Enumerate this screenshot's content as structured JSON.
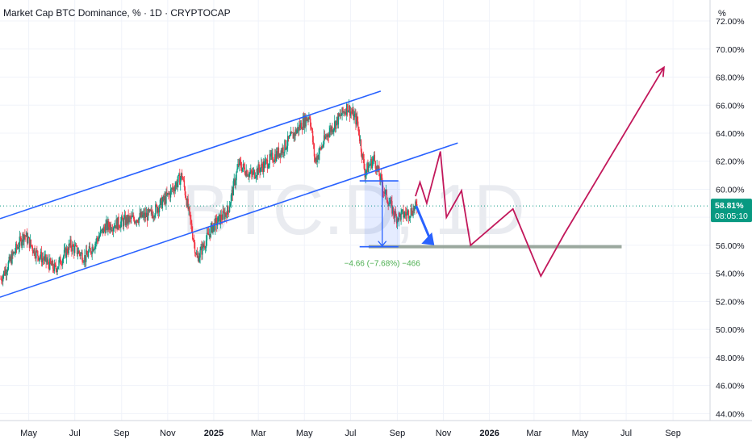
{
  "header": {
    "title": "Market Cap BTC Dominance, % · 1D · CRYPTOCAP"
  },
  "watermark": "BTC.D, 1D",
  "price_axis": {
    "unit_label": "%",
    "ticks": [
      "72.00%",
      "70.00%",
      "68.00%",
      "66.00%",
      "64.00%",
      "62.00%",
      "60.00%",
      "58.00%",
      "56.00%",
      "54.00%",
      "52.00%",
      "50.00%",
      "48.00%",
      "46.00%",
      "44.00%"
    ]
  },
  "time_axis": {
    "ticks": [
      "May",
      "Jul",
      "Sep",
      "Nov",
      "2025",
      "Mar",
      "May",
      "Jul",
      "Sep",
      "Nov",
      "2026",
      "Mar",
      "May",
      "Jul",
      "Sep"
    ],
    "bold": [
      "2025",
      "2026"
    ]
  },
  "current_price": {
    "value": "58.81%",
    "countdown": "08:05:10",
    "level": 58.81
  },
  "measure_label": "−4.66 (−7.68%) −466",
  "colors": {
    "up": "#089981",
    "down": "#f23645",
    "channel": "#2962ff",
    "projection": "#c2185b",
    "support": "#8a9a8e",
    "badge": "#089981",
    "measure_text": "#4caf50"
  },
  "chart_data": {
    "type": "candlestick",
    "title": "Market Cap BTC Dominance, % · 1D · CRYPTOCAP",
    "timeframe": "1D",
    "ylim": [
      43.5,
      73.5
    ],
    "x_range": [
      "2024-03-24",
      "2026-10-20"
    ],
    "grid": true,
    "key_points": [
      {
        "date": "2024-03-25",
        "value": 53.6
      },
      {
        "date": "2024-04-15",
        "value": 55.8
      },
      {
        "date": "2024-04-25",
        "value": 56.8
      },
      {
        "date": "2024-05-10",
        "value": 55.5
      },
      {
        "date": "2024-06-05",
        "value": 54.3
      },
      {
        "date": "2024-06-25",
        "value": 56.0
      },
      {
        "date": "2024-07-15",
        "value": 55.1
      },
      {
        "date": "2024-08-10",
        "value": 57.3
      },
      {
        "date": "2024-09-10",
        "value": 57.8
      },
      {
        "date": "2024-10-10",
        "value": 58.2
      },
      {
        "date": "2024-11-01",
        "value": 59.5
      },
      {
        "date": "2024-11-20",
        "value": 61.0
      },
      {
        "date": "2024-12-10",
        "value": 55.0
      },
      {
        "date": "2024-12-30",
        "value": 57.3
      },
      {
        "date": "2025-01-20",
        "value": 58.5
      },
      {
        "date": "2025-02-03",
        "value": 61.8
      },
      {
        "date": "2025-02-20",
        "value": 61.0
      },
      {
        "date": "2025-03-10",
        "value": 61.8
      },
      {
        "date": "2025-04-01",
        "value": 62.8
      },
      {
        "date": "2025-04-25",
        "value": 64.5
      },
      {
        "date": "2025-05-08",
        "value": 65.3
      },
      {
        "date": "2025-05-15",
        "value": 62.0
      },
      {
        "date": "2025-06-01",
        "value": 64.0
      },
      {
        "date": "2025-06-27",
        "value": 65.9
      },
      {
        "date": "2025-07-10",
        "value": 64.8
      },
      {
        "date": "2025-07-20",
        "value": 61.2
      },
      {
        "date": "2025-08-01",
        "value": 62.2
      },
      {
        "date": "2025-08-15",
        "value": 59.8
      },
      {
        "date": "2025-08-30",
        "value": 58.0
      },
      {
        "date": "2025-09-15",
        "value": 58.3
      },
      {
        "date": "2025-09-28",
        "value": 58.81
      }
    ],
    "channel_upper": [
      {
        "date": "2024-03-24",
        "value": 57.9
      },
      {
        "date": "2025-08-10",
        "value": 67.0
      }
    ],
    "channel_lower": [
      {
        "date": "2024-03-24",
        "value": 52.3
      },
      {
        "date": "2025-11-20",
        "value": 63.3
      }
    ],
    "support_level": {
      "value": 55.9,
      "from": "2025-07-25",
      "to": "2026-06-25"
    },
    "measure": {
      "date": "2025-08-12",
      "from": 60.6,
      "to": 55.9,
      "change": -4.66,
      "percent": -7.68
    },
    "projection": [
      {
        "date": "2025-09-25",
        "value": 59.5
      },
      {
        "date": "2025-10-01",
        "value": 60.5
      },
      {
        "date": "2025-10-10",
        "value": 59.0
      },
      {
        "date": "2025-10-28",
        "value": 62.7
      },
      {
        "date": "2025-11-05",
        "value": 58.0
      },
      {
        "date": "2025-11-25",
        "value": 59.9
      },
      {
        "date": "2025-12-07",
        "value": 56.0
      },
      {
        "date": "2026-02-01",
        "value": 58.6
      },
      {
        "date": "2026-03-10",
        "value": 53.8
      },
      {
        "date": "2026-04-10",
        "value": 56.8
      },
      {
        "date": "2026-08-20",
        "value": 68.7
      }
    ]
  }
}
